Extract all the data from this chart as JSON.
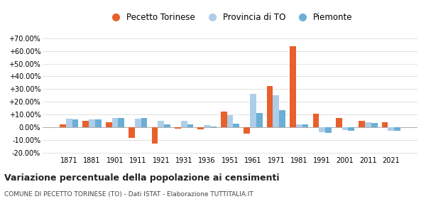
{
  "years": [
    1871,
    1881,
    1901,
    1911,
    1921,
    1931,
    1936,
    1951,
    1961,
    1971,
    1981,
    1991,
    2001,
    2011,
    2021
  ],
  "pecetto": [
    2.0,
    5.0,
    4.0,
    -8.5,
    -13.0,
    -1.0,
    -1.5,
    12.5,
    -5.0,
    32.5,
    63.5,
    10.5,
    7.0,
    5.0,
    4.0
  ],
  "provincia": [
    6.5,
    6.0,
    7.5,
    6.5,
    5.0,
    5.0,
    1.5,
    9.5,
    26.5,
    25.0,
    2.0,
    -4.0,
    -2.0,
    4.0,
    -2.5
  ],
  "piemonte": [
    6.0,
    6.0,
    7.0,
    7.5,
    2.5,
    2.0,
    0.5,
    3.0,
    11.0,
    13.5,
    2.0,
    -4.5,
    -2.5,
    3.5,
    -2.5
  ],
  "pecetto_color": "#e8602c",
  "provincia_color": "#aecde8",
  "piemonte_color": "#6baed6",
  "title": "Variazione percentuale della popolazione ai censimenti",
  "subtitle": "COMUNE DI PECETTO TORINESE (TO) - Dati ISTAT - Elaborazione TUTTITALIA.IT",
  "ylim": [
    -22,
    75
  ],
  "yticks": [
    -20,
    -10,
    0,
    10,
    20,
    30,
    40,
    50,
    60,
    70
  ],
  "background_color": "#ffffff",
  "grid_color": "#dddddd",
  "legend_labels": [
    "Pecetto Torinese",
    "Provincia di TO",
    "Piemonte"
  ]
}
